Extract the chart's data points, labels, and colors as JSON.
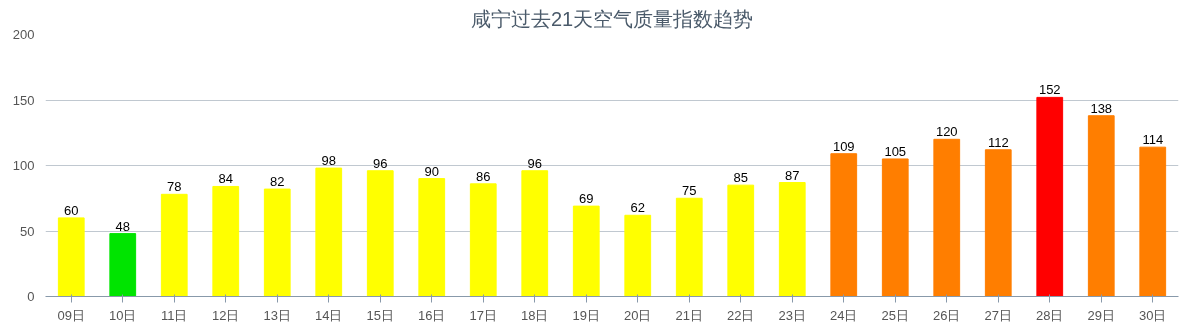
{
  "chart_data": {
    "type": "bar",
    "title": "咸宁过去21天空气质量指数趋势",
    "categories": [
      "09日",
      "10日",
      "11日",
      "12日",
      "13日",
      "14日",
      "15日",
      "16日",
      "17日",
      "18日",
      "19日",
      "20日",
      "21日",
      "22日",
      "23日",
      "24日",
      "25日",
      "26日",
      "27日",
      "28日",
      "29日",
      "30日"
    ],
    "values": [
      60,
      48,
      78,
      84,
      82,
      98,
      96,
      90,
      86,
      96,
      69,
      62,
      75,
      85,
      87,
      109,
      105,
      120,
      112,
      152,
      138,
      114
    ],
    "colors": [
      "#ffff00",
      "#00e400",
      "#ffff00",
      "#ffff00",
      "#ffff00",
      "#ffff00",
      "#ffff00",
      "#ffff00",
      "#ffff00",
      "#ffff00",
      "#ffff00",
      "#ffff00",
      "#ffff00",
      "#ffff00",
      "#ffff00",
      "#ff7e00",
      "#ff7e00",
      "#ff7e00",
      "#ff7e00",
      "#ff0000",
      "#ff7e00",
      "#ff7e00"
    ],
    "ylim": [
      0,
      200
    ],
    "yticks": [
      0,
      50,
      100,
      150,
      200
    ],
    "grid": "y",
    "data_labels": true
  }
}
